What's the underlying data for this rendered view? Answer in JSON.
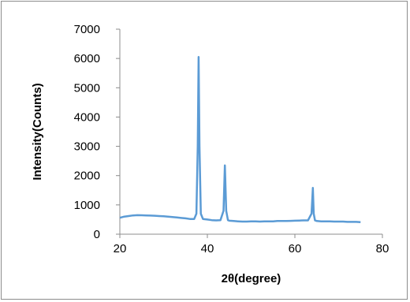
{
  "chart_data": {
    "type": "line",
    "title": "",
    "xlabel": "2θ(degree)",
    "ylabel": "Intensity(Counts)",
    "xlim": [
      20,
      80
    ],
    "ylim": [
      0,
      7000
    ],
    "x_ticks": [
      "20",
      "40",
      "60",
      "80"
    ],
    "y_ticks": [
      "0",
      "1000",
      "2000",
      "3000",
      "4000",
      "5000",
      "6000",
      "7000"
    ],
    "grid": false,
    "legend": "none",
    "series_color": "#5b9bd5",
    "series": [
      {
        "x": [
          20,
          21,
          22,
          23,
          24,
          25,
          26,
          27,
          28,
          29,
          30,
          31,
          32,
          33,
          34,
          35,
          36,
          37,
          37.5,
          37.8,
          38.0,
          38.2,
          38.5,
          39,
          40,
          41,
          42,
          43,
          43.7,
          44.0,
          44.3,
          44.7,
          45,
          46,
          47,
          48,
          49,
          50,
          51,
          52,
          53,
          54,
          55,
          56,
          57,
          58,
          59,
          60,
          61,
          62,
          63,
          63.8,
          64.1,
          64.3,
          64.6,
          65,
          66,
          67,
          68,
          69,
          70,
          71,
          72,
          73,
          74,
          75
        ],
        "y": [
          560,
          600,
          620,
          640,
          650,
          645,
          640,
          635,
          630,
          620,
          610,
          600,
          585,
          570,
          555,
          540,
          520,
          520,
          700,
          3000,
          6050,
          3000,
          700,
          520,
          500,
          480,
          470,
          480,
          800,
          2350,
          800,
          480,
          460,
          450,
          440,
          430,
          430,
          440,
          440,
          430,
          440,
          440,
          440,
          450,
          450,
          450,
          455,
          460,
          465,
          470,
          470,
          700,
          1580,
          700,
          470,
          450,
          440,
          440,
          440,
          430,
          430,
          430,
          420,
          420,
          420,
          410
        ]
      }
    ]
  }
}
